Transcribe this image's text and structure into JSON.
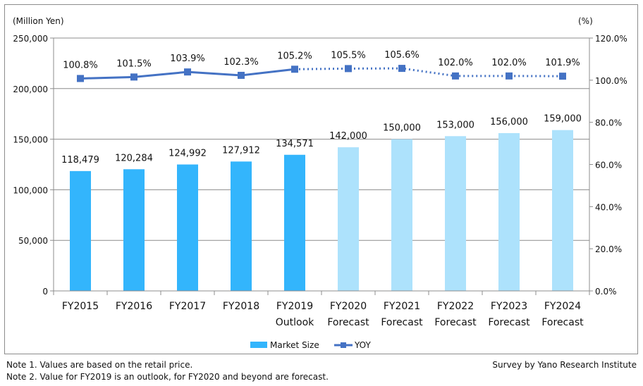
{
  "chart_data": {
    "type": "bar+line",
    "categories": [
      "FY2015",
      "FY2016",
      "FY2017",
      "FY2018",
      "FY2019",
      "FY2020",
      "FY2021",
      "FY2022",
      "FY2023",
      "FY2024"
    ],
    "category_sublabels": [
      "",
      "",
      "",
      "",
      "Outlook",
      "Forecast",
      "Forecast",
      "Forecast",
      "Forecast",
      "Forecast"
    ],
    "series": [
      {
        "name": "Market Size",
        "type": "bar",
        "axis": "left",
        "values": [
          118479,
          120284,
          124992,
          127912,
          134571,
          142000,
          150000,
          153000,
          156000,
          159000
        ],
        "labels": [
          "118,479",
          "120,284",
          "124,992",
          "127,912",
          "134,571",
          "142,000",
          "150,000",
          "153,000",
          "156,000",
          "159,000"
        ],
        "color": "#33b5fc",
        "forecast_color": "#ade2fc"
      },
      {
        "name": "YOY",
        "type": "line",
        "axis": "right",
        "values": [
          100.8,
          101.5,
          103.9,
          102.3,
          105.2,
          105.5,
          105.6,
          102.0,
          102.0,
          101.9
        ],
        "labels": [
          "100.8%",
          "101.5%",
          "103.9%",
          "102.3%",
          "105.2%",
          "105.5%",
          "105.6%",
          "102.0%",
          "102.0%",
          "101.9%"
        ],
        "color": "#4472c4"
      }
    ],
    "solid_through_index": 4,
    "left_axis": {
      "unit_label": "(Million  Yen)",
      "ylim": [
        0,
        250000
      ],
      "ticks": [
        0,
        50000,
        100000,
        150000,
        200000,
        250000
      ],
      "tick_labels": [
        "0",
        "50,000",
        "100,000",
        "150,000",
        "200,000",
        "250,000"
      ]
    },
    "right_axis": {
      "unit_label": "(%)",
      "ylim": [
        0,
        120
      ],
      "ticks": [
        0,
        20,
        40,
        60,
        80,
        100,
        120
      ],
      "tick_labels": [
        "0.0%",
        "20.0%",
        "40.0%",
        "60.0%",
        "80.0%",
        "100.0%",
        "120.0%"
      ]
    },
    "grid": true,
    "legend": {
      "placement": "bottom-center",
      "items": [
        "Market Size",
        "YOY"
      ]
    }
  },
  "notes": {
    "note1": "Note 1.  Values are based on the retail price.",
    "note2": "Note 2.  Value for FY2019 is an outlook, for FY2020 and beyond are forecast.",
    "source": "Survey by Yano Research Institute"
  }
}
